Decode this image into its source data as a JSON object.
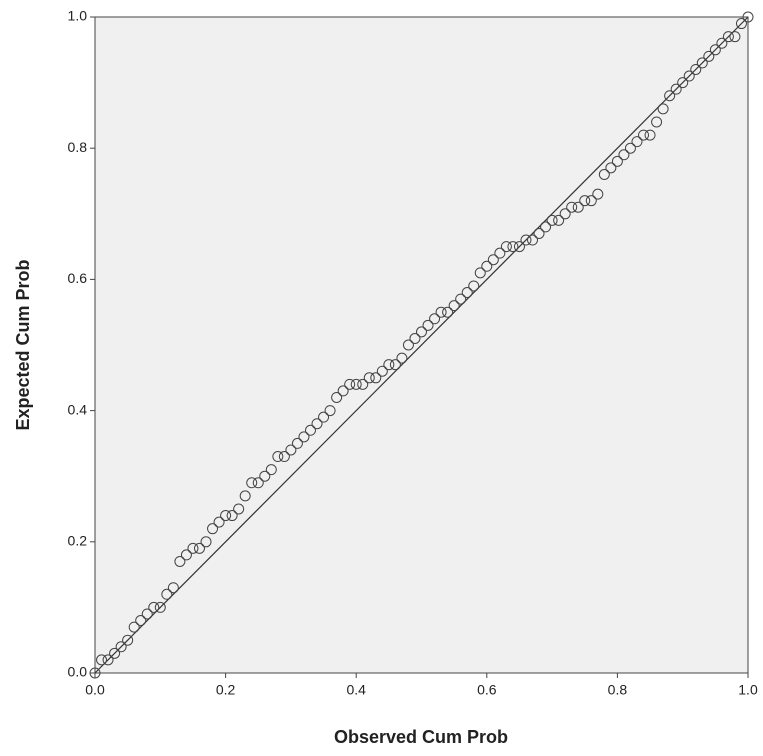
{
  "chart_data": {
    "type": "scatter",
    "x_label": "Observed Cum Prob",
    "y_label": "Expected Cum Prob",
    "xlim": [
      0,
      1
    ],
    "ylim": [
      0,
      1
    ],
    "xticks": [
      {
        "value": 0,
        "label": "0.0"
      },
      0.2,
      0.4,
      0.6,
      0.8,
      {
        "value": 1,
        "label": "1.0"
      }
    ],
    "yticks": [
      {
        "value": 0,
        "label": "0.0"
      },
      0.2,
      0.4,
      0.6,
      0.8,
      {
        "value": 1,
        "label": "1.0"
      }
    ],
    "color": "#444444",
    "reference_line": true,
    "x": [
      0.0,
      0.01,
      0.02,
      0.03,
      0.04,
      0.05,
      0.06,
      0.07,
      0.08,
      0.09,
      0.1,
      0.11,
      0.12,
      0.13,
      0.14,
      0.15,
      0.16,
      0.17,
      0.18,
      0.19,
      0.2,
      0.21,
      0.22,
      0.23,
      0.24,
      0.25,
      0.26,
      0.27,
      0.28,
      0.29,
      0.3,
      0.31,
      0.32,
      0.33,
      0.34,
      0.35,
      0.36,
      0.37,
      0.38,
      0.39,
      0.4,
      0.41,
      0.42,
      0.43,
      0.44,
      0.45,
      0.46,
      0.47,
      0.48,
      0.49,
      0.5,
      0.51,
      0.52,
      0.53,
      0.54,
      0.55,
      0.56,
      0.57,
      0.58,
      0.59,
      0.6,
      0.61,
      0.62,
      0.63,
      0.64,
      0.65,
      0.66,
      0.67,
      0.68,
      0.69,
      0.7,
      0.71,
      0.72,
      0.73,
      0.74,
      0.75,
      0.76,
      0.77,
      0.78,
      0.79,
      0.8,
      0.81,
      0.82,
      0.83,
      0.84,
      0.85,
      0.86,
      0.87,
      0.88,
      0.89,
      0.9,
      0.91,
      0.92,
      0.93,
      0.94,
      0.95,
      0.96,
      0.97,
      0.98,
      0.99,
      1.0
    ],
    "values": [
      0.0,
      0.02,
      0.02,
      0.03,
      0.04,
      0.05,
      0.07,
      0.08,
      0.09,
      0.1,
      0.1,
      0.12,
      0.13,
      0.17,
      0.18,
      0.19,
      0.19,
      0.2,
      0.22,
      0.23,
      0.24,
      0.24,
      0.25,
      0.27,
      0.29,
      0.29,
      0.3,
      0.31,
      0.33,
      0.33,
      0.34,
      0.35,
      0.36,
      0.37,
      0.38,
      0.39,
      0.4,
      0.42,
      0.43,
      0.44,
      0.44,
      0.44,
      0.45,
      0.45,
      0.46,
      0.47,
      0.47,
      0.48,
      0.5,
      0.51,
      0.52,
      0.53,
      0.54,
      0.55,
      0.55,
      0.56,
      0.57,
      0.58,
      0.59,
      0.61,
      0.62,
      0.63,
      0.64,
      0.65,
      0.65,
      0.65,
      0.66,
      0.66,
      0.67,
      0.68,
      0.69,
      0.69,
      0.7,
      0.71,
      0.71,
      0.72,
      0.72,
      0.73,
      0.76,
      0.77,
      0.78,
      0.79,
      0.8,
      0.81,
      0.82,
      0.82,
      0.84,
      0.86,
      0.88,
      0.89,
      0.9,
      0.91,
      0.92,
      0.93,
      0.94,
      0.95,
      0.96,
      0.97,
      0.97,
      0.99,
      1.0
    ]
  }
}
